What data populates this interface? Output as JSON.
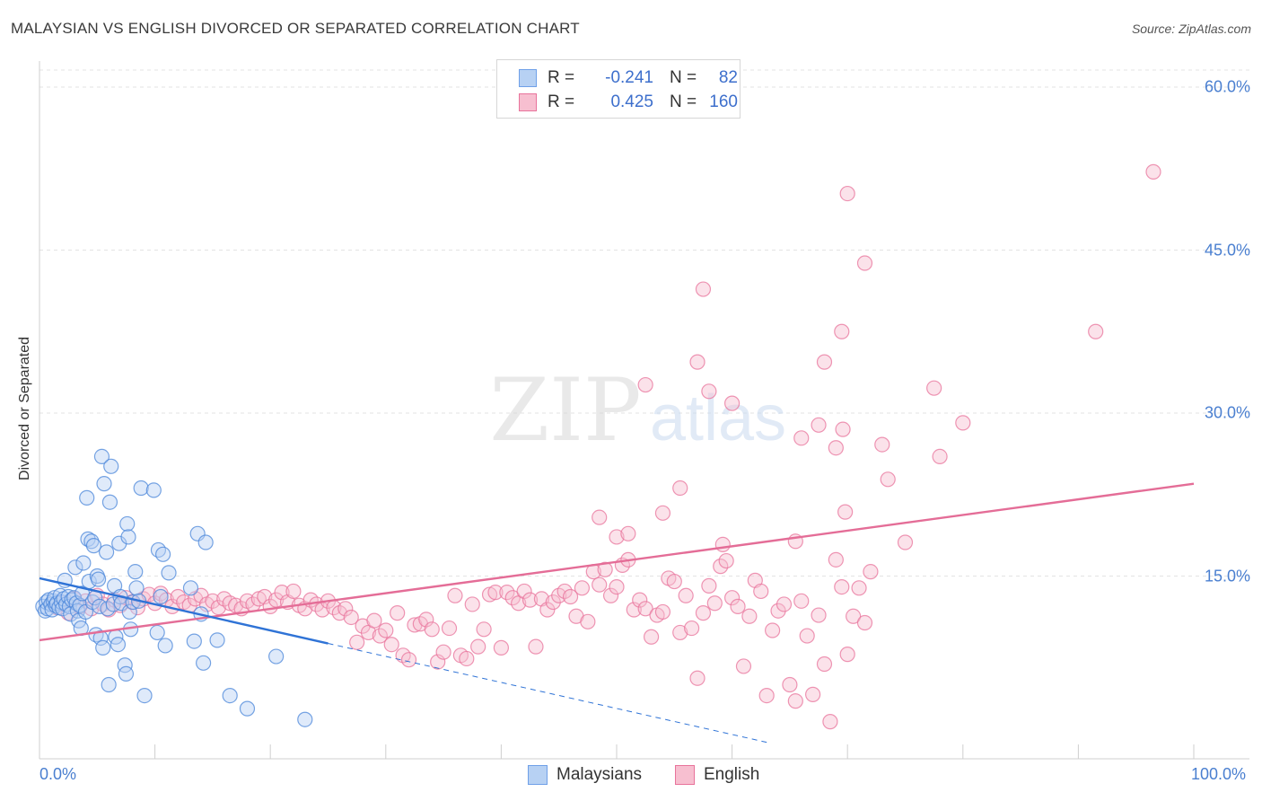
{
  "header": {
    "title": "MALAYSIAN VS ENGLISH DIVORCED OR SEPARATED CORRELATION CHART",
    "source": "Source: ZipAtlas.com"
  },
  "watermark": {
    "zip": "ZIP",
    "atlas": "atlas"
  },
  "legend": {
    "rows": [
      {
        "r_label": "R =",
        "r_value": "-0.241",
        "n_label": "N =",
        "n_value": "82",
        "color": "#6fa0e8",
        "fill": "#b7d1f3"
      },
      {
        "r_label": "R =",
        "r_value": "0.425",
        "n_label": "N =",
        "n_value": "160",
        "color": "#e8739b",
        "fill": "#f7bfd0"
      }
    ]
  },
  "bottom_legend": {
    "items": [
      {
        "label": "Malaysians",
        "color": "#6fa0e8",
        "fill": "#b7d1f3"
      },
      {
        "label": "English",
        "color": "#e8739b",
        "fill": "#f7bfd0"
      }
    ]
  },
  "chart_data": {
    "type": "scatter",
    "title": "MALAYSIAN VS ENGLISH DIVORCED OR SEPARATED CORRELATION CHART",
    "xlabel": "",
    "ylabel": "Divorced or Separated",
    "xlim": [
      0,
      100
    ],
    "ylim": [
      0,
      60
    ],
    "x_tick_labels": [
      "0.0%",
      "100.0%"
    ],
    "y_ticks": [
      {
        "value": 15,
        "label": "15.0%"
      },
      {
        "value": 30,
        "label": "30.0%"
      },
      {
        "value": 45,
        "label": "45.0%"
      },
      {
        "value": 60,
        "label": "60.0%"
      }
    ],
    "grid": true,
    "series": [
      {
        "name": "Malaysians",
        "color": "#4a86d9",
        "fill": "#b7d1f3",
        "R": -0.241,
        "N": 82,
        "trend": {
          "x": [
            0,
            25
          ],
          "y": [
            14.8,
            8.8
          ]
        },
        "trend_extension": {
          "x": [
            25,
            63
          ],
          "y": [
            8.8,
            -0.3
          ]
        },
        "points": [
          [
            0.3,
            12.2
          ],
          [
            0.5,
            11.8
          ],
          [
            0.6,
            12.6
          ],
          [
            0.7,
            12.0
          ],
          [
            0.8,
            12.8
          ],
          [
            1.0,
            12.4
          ],
          [
            1.1,
            11.9
          ],
          [
            1.2,
            12.7
          ],
          [
            1.3,
            13.0
          ],
          [
            1.4,
            12.3
          ],
          [
            1.5,
            12.5
          ],
          [
            1.7,
            12.1
          ],
          [
            1.8,
            13.2
          ],
          [
            1.9,
            12.6
          ],
          [
            2.0,
            12.0
          ],
          [
            2.1,
            12.9
          ],
          [
            2.2,
            14.6
          ],
          [
            2.3,
            12.4
          ],
          [
            2.5,
            13.1
          ],
          [
            2.6,
            12.2
          ],
          [
            2.7,
            11.5
          ],
          [
            2.8,
            12.8
          ],
          [
            3.0,
            13.0
          ],
          [
            3.1,
            15.8
          ],
          [
            3.2,
            12.5
          ],
          [
            3.3,
            11.8
          ],
          [
            3.4,
            10.9
          ],
          [
            3.5,
            12.3
          ],
          [
            3.6,
            10.2
          ],
          [
            3.7,
            13.4
          ],
          [
            3.8,
            16.2
          ],
          [
            4.0,
            11.7
          ],
          [
            4.1,
            22.2
          ],
          [
            4.2,
            18.4
          ],
          [
            4.3,
            14.5
          ],
          [
            4.5,
            18.2
          ],
          [
            4.6,
            12.6
          ],
          [
            4.7,
            17.8
          ],
          [
            4.8,
            13.0
          ],
          [
            4.9,
            9.6
          ],
          [
            5.0,
            15.0
          ],
          [
            5.1,
            14.7
          ],
          [
            5.2,
            12.2
          ],
          [
            5.3,
            9.3
          ],
          [
            5.4,
            26.0
          ],
          [
            5.5,
            8.4
          ],
          [
            5.6,
            23.5
          ],
          [
            5.8,
            17.2
          ],
          [
            5.9,
            12.0
          ],
          [
            6.0,
            5.0
          ],
          [
            6.1,
            21.8
          ],
          [
            6.2,
            25.1
          ],
          [
            6.4,
            12.4
          ],
          [
            6.5,
            14.1
          ],
          [
            6.6,
            9.4
          ],
          [
            6.8,
            8.7
          ],
          [
            6.9,
            18.0
          ],
          [
            7.0,
            13.1
          ],
          [
            7.1,
            12.5
          ],
          [
            7.4,
            6.8
          ],
          [
            7.5,
            6.0
          ],
          [
            7.6,
            19.8
          ],
          [
            7.7,
            18.6
          ],
          [
            7.8,
            11.7
          ],
          [
            7.9,
            10.1
          ],
          [
            8.1,
            12.6
          ],
          [
            8.3,
            15.4
          ],
          [
            8.4,
            13.9
          ],
          [
            8.6,
            12.7
          ],
          [
            8.8,
            23.1
          ],
          [
            9.1,
            4.0
          ],
          [
            9.9,
            22.9
          ],
          [
            10.2,
            9.8
          ],
          [
            10.3,
            17.4
          ],
          [
            10.5,
            13.1
          ],
          [
            10.7,
            17.0
          ],
          [
            10.9,
            8.6
          ],
          [
            11.2,
            15.3
          ],
          [
            13.1,
            13.9
          ],
          [
            13.4,
            9.0
          ],
          [
            13.7,
            18.9
          ],
          [
            14.0,
            11.5
          ],
          [
            14.2,
            7.0
          ],
          [
            14.4,
            18.1
          ],
          [
            15.4,
            9.1
          ],
          [
            16.5,
            4.0
          ],
          [
            18.0,
            2.8
          ],
          [
            20.5,
            7.6
          ],
          [
            23.0,
            1.8
          ]
        ]
      },
      {
        "name": "English",
        "color": "#e8739b",
        "fill": "#f7bfd0",
        "R": 0.425,
        "N": 160,
        "trend": {
          "x": [
            0,
            100
          ],
          "y": [
            9.1,
            23.5
          ]
        },
        "points": [
          [
            1.5,
            12.1
          ],
          [
            2.0,
            12.5
          ],
          [
            2.5,
            11.6
          ],
          [
            3.0,
            12.9
          ],
          [
            3.5,
            12.2
          ],
          [
            4.0,
            12.7
          ],
          [
            4.5,
            12.0
          ],
          [
            5.0,
            13.2
          ],
          [
            5.5,
            12.4
          ],
          [
            6.0,
            11.9
          ],
          [
            6.5,
            12.8
          ],
          [
            7.0,
            12.3
          ],
          [
            7.5,
            13.0
          ],
          [
            8.0,
            12.6
          ],
          [
            8.5,
            12.1
          ],
          [
            9.0,
            12.9
          ],
          [
            9.5,
            13.3
          ],
          [
            10.0,
            12.5
          ],
          [
            10.5,
            13.4
          ],
          [
            11.0,
            12.8
          ],
          [
            11.5,
            12.2
          ],
          [
            12.0,
            13.1
          ],
          [
            12.5,
            12.6
          ],
          [
            13.0,
            12.3
          ],
          [
            13.5,
            12.9
          ],
          [
            14.0,
            13.2
          ],
          [
            14.5,
            12.4
          ],
          [
            15.0,
            12.7
          ],
          [
            15.5,
            12.1
          ],
          [
            16.0,
            12.9
          ],
          [
            16.5,
            12.5
          ],
          [
            17.0,
            12.3
          ],
          [
            17.5,
            12.0
          ],
          [
            18.0,
            12.7
          ],
          [
            18.5,
            12.4
          ],
          [
            19.0,
            12.9
          ],
          [
            19.5,
            13.1
          ],
          [
            20.0,
            12.2
          ],
          [
            20.5,
            12.8
          ],
          [
            21.0,
            13.5
          ],
          [
            21.5,
            12.6
          ],
          [
            22.0,
            13.6
          ],
          [
            22.5,
            12.3
          ],
          [
            23.0,
            12.0
          ],
          [
            23.5,
            12.8
          ],
          [
            24.0,
            12.4
          ],
          [
            24.5,
            11.9
          ],
          [
            25.0,
            12.7
          ],
          [
            25.5,
            12.1
          ],
          [
            26.0,
            11.6
          ],
          [
            26.5,
            12.0
          ],
          [
            27.0,
            11.2
          ],
          [
            27.5,
            8.9
          ],
          [
            28.0,
            10.4
          ],
          [
            28.5,
            9.8
          ],
          [
            29.0,
            10.9
          ],
          [
            29.5,
            9.5
          ],
          [
            30.0,
            10.0
          ],
          [
            30.5,
            8.7
          ],
          [
            31.0,
            11.6
          ],
          [
            31.5,
            7.7
          ],
          [
            32.0,
            7.3
          ],
          [
            32.5,
            10.5
          ],
          [
            33.0,
            10.6
          ],
          [
            33.5,
            11.0
          ],
          [
            34.0,
            10.1
          ],
          [
            34.5,
            7.1
          ],
          [
            35.0,
            8.0
          ],
          [
            35.5,
            10.2
          ],
          [
            36.0,
            13.2
          ],
          [
            36.5,
            7.7
          ],
          [
            37.0,
            7.4
          ],
          [
            37.5,
            12.4
          ],
          [
            38.0,
            8.5
          ],
          [
            38.5,
            10.1
          ],
          [
            39.0,
            13.3
          ],
          [
            39.5,
            13.5
          ],
          [
            40.0,
            8.4
          ],
          [
            40.5,
            13.5
          ],
          [
            41.0,
            13.0
          ],
          [
            41.5,
            12.5
          ],
          [
            42.0,
            13.6
          ],
          [
            42.5,
            12.8
          ],
          [
            43.0,
            8.5
          ],
          [
            43.5,
            12.9
          ],
          [
            44.0,
            11.9
          ],
          [
            44.5,
            12.6
          ],
          [
            45.0,
            13.2
          ],
          [
            45.5,
            13.6
          ],
          [
            46.0,
            13.1
          ],
          [
            46.5,
            11.3
          ],
          [
            47.0,
            13.9
          ],
          [
            47.5,
            10.8
          ],
          [
            48.0,
            15.4
          ],
          [
            48.5,
            14.2
          ],
          [
            49.0,
            15.6
          ],
          [
            49.5,
            13.2
          ],
          [
            50.0,
            14.0
          ],
          [
            50.5,
            16.0
          ],
          [
            51.0,
            16.5
          ],
          [
            51.5,
            11.9
          ],
          [
            52.0,
            12.8
          ],
          [
            52.5,
            12.0
          ],
          [
            53.0,
            9.4
          ],
          [
            53.5,
            11.4
          ],
          [
            54.0,
            11.7
          ],
          [
            54.5,
            14.8
          ],
          [
            55.0,
            14.5
          ],
          [
            55.5,
            9.8
          ],
          [
            56.0,
            13.2
          ],
          [
            56.5,
            10.2
          ],
          [
            57.0,
            5.6
          ],
          [
            57.5,
            11.6
          ],
          [
            58.0,
            14.1
          ],
          [
            58.5,
            12.5
          ],
          [
            59.0,
            15.9
          ],
          [
            59.5,
            16.4
          ],
          [
            60.0,
            13.0
          ],
          [
            60.5,
            12.2
          ],
          [
            61.0,
            6.7
          ],
          [
            61.5,
            11.3
          ],
          [
            62.0,
            14.6
          ],
          [
            62.5,
            13.6
          ],
          [
            63.0,
            4.0
          ],
          [
            63.5,
            10.0
          ],
          [
            64.0,
            11.8
          ],
          [
            64.5,
            12.4
          ],
          [
            65.0,
            5.0
          ],
          [
            65.5,
            3.5
          ],
          [
            66.0,
            12.7
          ],
          [
            66.5,
            9.5
          ],
          [
            67.0,
            4.1
          ],
          [
            67.5,
            11.4
          ],
          [
            68.0,
            6.9
          ],
          [
            68.5,
            1.6
          ],
          [
            69.0,
            16.5
          ],
          [
            69.5,
            14.0
          ],
          [
            70.0,
            7.8
          ],
          [
            70.5,
            11.3
          ],
          [
            71.0,
            13.9
          ],
          [
            71.5,
            10.7
          ],
          [
            72.0,
            15.4
          ],
          [
            48.5,
            20.4
          ],
          [
            50.0,
            18.6
          ],
          [
            51.0,
            18.9
          ],
          [
            54.0,
            20.8
          ],
          [
            55.5,
            23.1
          ],
          [
            59.2,
            17.9
          ],
          [
            65.5,
            18.2
          ],
          [
            69.8,
            20.9
          ],
          [
            75.0,
            18.1
          ],
          [
            78.0,
            26.0
          ],
          [
            73.5,
            23.9
          ],
          [
            73.0,
            27.1
          ],
          [
            69.0,
            26.8
          ],
          [
            67.5,
            28.9
          ],
          [
            69.6,
            28.5
          ],
          [
            66.0,
            27.7
          ],
          [
            77.5,
            32.3
          ],
          [
            80.0,
            29.1
          ],
          [
            52.5,
            32.6
          ],
          [
            57.0,
            34.7
          ],
          [
            58.0,
            32.0
          ],
          [
            60.0,
            30.9
          ],
          [
            68.0,
            34.7
          ],
          [
            69.5,
            37.5
          ],
          [
            57.5,
            41.4
          ],
          [
            71.5,
            43.8
          ],
          [
            70.0,
            50.2
          ],
          [
            91.5,
            37.5
          ],
          [
            96.5,
            52.2
          ]
        ]
      }
    ]
  }
}
